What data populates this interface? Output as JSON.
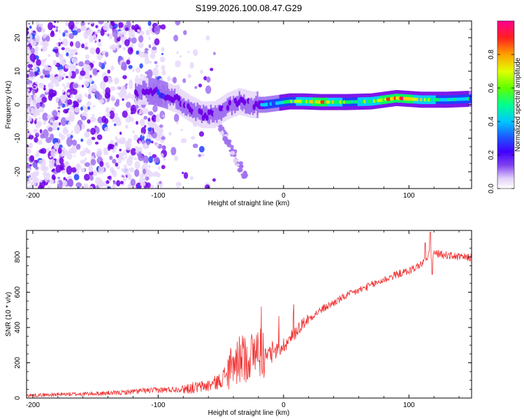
{
  "title": "S199.2026.100.08.47.G29",
  "colors": {
    "snr_line": "#f03030",
    "spectrogram_cmap": [
      "#ffffff",
      "#e8d8fa",
      "#a070f0",
      "#7000e8",
      "#2040ff",
      "#00d0ff",
      "#00ff60",
      "#c0ff00",
      "#ffd000",
      "#ff3000",
      "#ff00a0"
    ]
  },
  "chart_data": [
    {
      "type": "heatmap",
      "name": "spectrogram",
      "xlabel": "Height of straight line (km)",
      "ylabel": "Frequency (Hz)",
      "xlim": [
        -205,
        150
      ],
      "ylim": [
        -25,
        25
      ],
      "xticks": [
        -200,
        -100,
        0,
        100
      ],
      "xtick_labels": [
        "-200",
        "-100",
        "0",
        "100"
      ],
      "yticks": [
        -20,
        -10,
        0,
        10,
        20
      ],
      "ytick_labels": [
        "-20",
        "-10",
        "0",
        "10",
        "20"
      ],
      "ridge": {
        "description": "dominant spectral ridge (frequency vs height)",
        "x": [
          -115,
          -105,
          -95,
          -85,
          -75,
          -65,
          -55,
          -45,
          -35,
          -25,
          -15,
          -5,
          5,
          15,
          30,
          50,
          70,
          90,
          110,
          130,
          150
        ],
        "freq": [
          4,
          4,
          3,
          1.5,
          -1,
          -3,
          -3,
          -0.5,
          1,
          0,
          0,
          0.5,
          1,
          1,
          0.8,
          0.8,
          1,
          2,
          1.5,
          1.5,
          1.8
        ],
        "amplitude": [
          0.3,
          0.35,
          0.35,
          0.3,
          0.3,
          0.28,
          0.3,
          0.28,
          0.3,
          0.25,
          0.5,
          0.55,
          0.6,
          0.7,
          0.85,
          0.6,
          0.7,
          0.95,
          0.7,
          0.6,
          0.55
        ]
      },
      "colorbar": {
        "label": "Normalized spectral amplitude",
        "range": [
          0,
          1
        ],
        "ticks": [
          0,
          0.2,
          0.4,
          0.6,
          0.8
        ],
        "tick_labels": [
          "0.0",
          "0.2",
          "0.4",
          "0.6",
          "0.8"
        ]
      }
    },
    {
      "type": "line",
      "name": "snr",
      "xlabel": "Height of straight line (km)",
      "ylabel": "SNR (10 * v/v)",
      "xlim": [
        -205,
        150
      ],
      "ylim": [
        0,
        950
      ],
      "xticks": [
        -200,
        -100,
        0,
        100
      ],
      "xtick_labels": [
        "-200",
        "-100",
        "0",
        "100"
      ],
      "yticks": [
        0,
        200,
        400,
        600,
        800
      ],
      "ytick_labels": [
        "0",
        "200",
        "400",
        "600",
        "800"
      ],
      "series": [
        {
          "name": "SNR",
          "x": [
            -205,
            -190,
            -170,
            -150,
            -130,
            -115,
            -100,
            -85,
            -70,
            -60,
            -50,
            -45,
            -40,
            -35,
            -30,
            -25,
            -20,
            -15,
            -10,
            -5,
            0,
            5,
            10,
            15,
            20,
            30,
            40,
            50,
            60,
            70,
            80,
            90,
            100,
            110,
            115,
            117,
            118,
            120,
            130,
            140,
            150
          ],
          "values": [
            15,
            18,
            22,
            25,
            30,
            40,
            45,
            50,
            60,
            70,
            100,
            150,
            180,
            220,
            230,
            240,
            270,
            250,
            240,
            270,
            300,
            330,
            380,
            420,
            450,
            500,
            540,
            580,
            610,
            640,
            670,
            700,
            720,
            760,
            790,
            860,
            780,
            820,
            810,
            800,
            795
          ]
        }
      ]
    }
  ]
}
